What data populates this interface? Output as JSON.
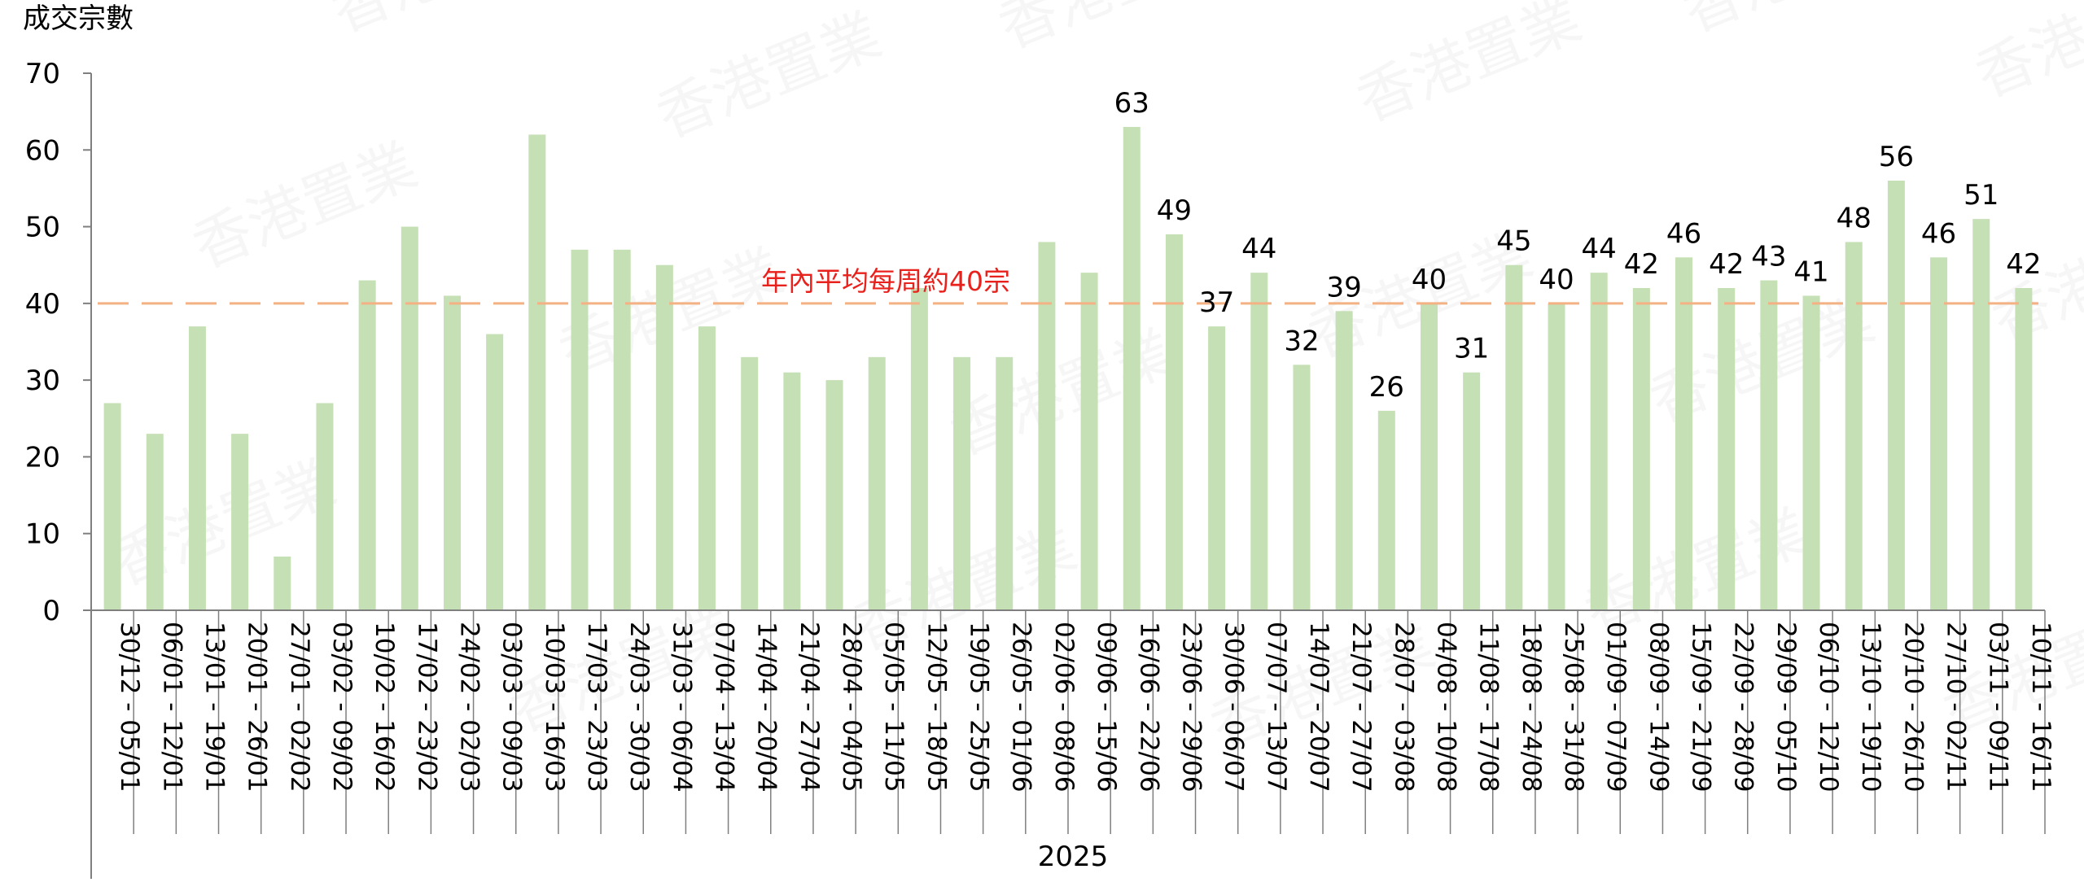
{
  "chart_data": {
    "type": "bar",
    "ylabel": "成交宗數",
    "xlabel": "2025",
    "ylim": [
      0,
      70
    ],
    "yticks": [
      0,
      10,
      20,
      30,
      40,
      50,
      60,
      70
    ],
    "grid": false,
    "categories": [
      "30/12 - 05/01",
      "06/01 - 12/01",
      "13/01 - 19/01",
      "20/01 - 26/01",
      "27/01 - 02/02",
      "03/02 - 09/02",
      "10/02 - 16/02",
      "17/02 - 23/02",
      "24/02 - 02/03",
      "03/03 - 09/03",
      "10/03 - 16/03",
      "17/03 - 23/03",
      "24/03 - 30/03",
      "31/03 - 06/04",
      "07/04 - 13/04",
      "14/04 - 20/04",
      "21/04 - 27/04",
      "28/04 - 04/05",
      "05/05 - 11/05",
      "12/05 - 18/05",
      "19/05 - 25/05",
      "26/05 - 01/06",
      "02/06 - 08/06",
      "09/06 - 15/06",
      "16/06 - 22/06",
      "23/06 - 29/06",
      "30/06 - 06/07",
      "07/07 - 13/07",
      "14/07 - 20/07",
      "21/07 - 27/07",
      "28/07 - 03/08",
      "04/08 - 10/08",
      "11/08 - 17/08",
      "18/08 - 24/08",
      "25/08 - 31/08",
      "01/09 - 07/09",
      "08/09 - 14/09",
      "15/09 - 21/09",
      "22/09 - 28/09",
      "29/09 - 05/10",
      "06/10 - 12/10",
      "13/10 - 19/10",
      "20/10 - 26/10",
      "27/10 - 02/11",
      "03/11 - 09/11",
      "10/11 - 16/11"
    ],
    "values": [
      27,
      23,
      37,
      23,
      7,
      27,
      43,
      50,
      41,
      36,
      62,
      47,
      47,
      45,
      37,
      33,
      31,
      30,
      33,
      42,
      33,
      33,
      48,
      44,
      63,
      49,
      37,
      44,
      32,
      39,
      26,
      40,
      31,
      45,
      40,
      44,
      42,
      46,
      42,
      43,
      41,
      48,
      56,
      46,
      51,
      42
    ],
    "data_labels_from_index": 24,
    "average_line": {
      "value": 40,
      "label": "年內平均每周約40宗"
    },
    "colors": {
      "bar": "#c5e0b4",
      "average_line": "#f4b183",
      "average_text": "#e8211c",
      "axis": "#7f7f7f"
    }
  },
  "watermark": {
    "text": "香港置業"
  }
}
